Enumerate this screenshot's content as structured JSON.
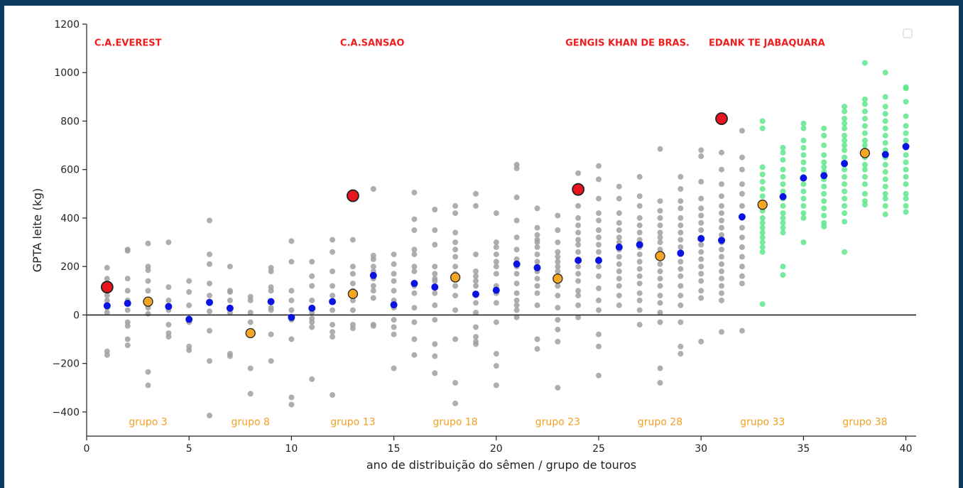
{
  "chart_data": {
    "type": "scatter",
    "xlabel": "ano de distribuição do sêmen / grupo de touros",
    "ylabel": "GPTA leite (kg)",
    "xlim": [
      0,
      40.5
    ],
    "ylim": [
      -500,
      1200
    ],
    "xticks": [
      0,
      5,
      10,
      15,
      20,
      25,
      30,
      35,
      40
    ],
    "yticks": [
      -400,
      -200,
      0,
      200,
      400,
      600,
      800,
      1000,
      1200
    ],
    "ytick_labels": [
      "−400",
      "−200",
      "0",
      "200",
      "400",
      "600",
      "800",
      "1000",
      "1200"
    ],
    "zero_line": true,
    "legend": {
      "placement": "top-right",
      "entries": []
    },
    "colors": {
      "gray_points": "#a0a0a0",
      "green_points": "#5ee68c",
      "group_mean": "#0a14e0",
      "group_marker": "#f5a623",
      "highlight_bull": "#e8141e",
      "bull_label": "#ee1c1c",
      "group_label": "#f0a020"
    },
    "annotations_bulls": [
      {
        "text": "C.A.EVEREST",
        "x": 1,
        "y": 1125
      },
      {
        "text": "C.A.SANSAO",
        "x": 13,
        "y": 1125
      },
      {
        "text": "GENGIS KHAN DE BRAS.",
        "x": 24,
        "y": 1125
      },
      {
        "text": "EDANK TE JABAQUARA",
        "x": 31,
        "y": 1125
      }
    ],
    "annotations_groups": [
      {
        "text": "grupo 3",
        "x": 3,
        "y": -440
      },
      {
        "text": "grupo 8",
        "x": 8,
        "y": -440
      },
      {
        "text": "grupo 13",
        "x": 13,
        "y": -440
      },
      {
        "text": "grupo 18",
        "x": 18,
        "y": -440
      },
      {
        "text": "grupo 23",
        "x": 23,
        "y": -440
      },
      {
        "text": "grupo 28",
        "x": 28,
        "y": -440
      },
      {
        "text": "grupo 33",
        "x": 33,
        "y": -440
      },
      {
        "text": "grupo 38",
        "x": 38,
        "y": -440
      }
    ],
    "highlight_bulls": [
      {
        "x": 1,
        "y": 115
      },
      {
        "x": 13,
        "y": 492
      },
      {
        "x": 24,
        "y": 518
      },
      {
        "x": 31,
        "y": 810
      }
    ],
    "group_markers": [
      {
        "x": 3,
        "y": 55
      },
      {
        "x": 8,
        "y": -75
      },
      {
        "x": 13,
        "y": 87
      },
      {
        "x": 18,
        "y": 155
      },
      {
        "x": 23,
        "y": 150
      },
      {
        "x": 28,
        "y": 243
      },
      {
        "x": 33,
        "y": 455
      },
      {
        "x": 38,
        "y": 668
      }
    ],
    "group_means": [
      {
        "x": 1,
        "y": 38
      },
      {
        "x": 2,
        "y": 48
      },
      {
        "x": 4,
        "y": 35
      },
      {
        "x": 5,
        "y": -18
      },
      {
        "x": 6,
        "y": 52
      },
      {
        "x": 7,
        "y": 28
      },
      {
        "x": 9,
        "y": 55
      },
      {
        "x": 10,
        "y": -10
      },
      {
        "x": 11,
        "y": 28
      },
      {
        "x": 12,
        "y": 55
      },
      {
        "x": 14,
        "y": 163
      },
      {
        "x": 15,
        "y": 42
      },
      {
        "x": 16,
        "y": 130
      },
      {
        "x": 17,
        "y": 115
      },
      {
        "x": 19,
        "y": 86
      },
      {
        "x": 20,
        "y": 102
      },
      {
        "x": 21,
        "y": 210
      },
      {
        "x": 22,
        "y": 195
      },
      {
        "x": 24,
        "y": 225
      },
      {
        "x": 25,
        "y": 225
      },
      {
        "x": 26,
        "y": 280
      },
      {
        "x": 27,
        "y": 290
      },
      {
        "x": 29,
        "y": 255
      },
      {
        "x": 30,
        "y": 315
      },
      {
        "x": 31,
        "y": 308
      },
      {
        "x": 32,
        "y": 405
      },
      {
        "x": 34,
        "y": 488
      },
      {
        "x": 35,
        "y": 565
      },
      {
        "x": 36,
        "y": 575
      },
      {
        "x": 37,
        "y": 625
      },
      {
        "x": 39,
        "y": 662
      },
      {
        "x": 40,
        "y": 695
      }
    ],
    "series_columns": [
      {
        "x": 1,
        "points": [
          195,
          150,
          100,
          80,
          60,
          30,
          10,
          -150,
          -165
        ]
      },
      {
        "x": 2,
        "points": [
          270,
          265,
          150,
          100,
          60,
          20,
          -30,
          -45,
          -100,
          -125
        ]
      },
      {
        "x": 3,
        "points": [
          295,
          200,
          185,
          140,
          100,
          30,
          5,
          -235,
          -290
        ]
      },
      {
        "x": 4,
        "points": [
          300,
          115,
          60,
          20,
          -40,
          -75,
          -90
        ]
      },
      {
        "x": 5,
        "points": [
          140,
          95,
          40,
          -30,
          -130,
          -145
        ]
      },
      {
        "x": 6,
        "points": [
          390,
          250,
          210,
          130,
          80,
          15,
          -65,
          -190,
          -415
        ]
      },
      {
        "x": 7,
        "points": [
          200,
          100,
          95,
          60,
          10,
          -160,
          -170
        ]
      },
      {
        "x": 8,
        "points": [
          75,
          60,
          10,
          -30,
          -220,
          -325
        ]
      },
      {
        "x": 9,
        "points": [
          195,
          180,
          115,
          100,
          30,
          20,
          -80,
          -190
        ]
      },
      {
        "x": 10,
        "points": [
          305,
          220,
          100,
          60,
          20,
          -20,
          -100,
          -340,
          -370
        ]
      },
      {
        "x": 11,
        "points": [
          220,
          160,
          120,
          60,
          10,
          -15,
          -30,
          -50,
          -265
        ]
      },
      {
        "x": 12,
        "points": [
          310,
          260,
          180,
          120,
          80,
          20,
          -40,
          -70,
          -90,
          -330
        ]
      },
      {
        "x": 13,
        "points": [
          310,
          200,
          170,
          130,
          100,
          60,
          20,
          -40,
          -55
        ]
      },
      {
        "x": 14,
        "points": [
          520,
          245,
          230,
          200,
          180,
          150,
          120,
          100,
          70,
          -40,
          -45
        ]
      },
      {
        "x": 15,
        "points": [
          250,
          210,
          170,
          140,
          100,
          60,
          30,
          -20,
          -50,
          -80,
          -220
        ]
      },
      {
        "x": 16,
        "points": [
          505,
          395,
          350,
          270,
          250,
          200,
          180,
          120,
          90,
          30,
          -30,
          -100,
          -165
        ]
      },
      {
        "x": 17,
        "points": [
          435,
          350,
          290,
          200,
          170,
          150,
          140,
          120,
          90,
          40,
          -20,
          -120,
          -170,
          -240
        ]
      },
      {
        "x": 18,
        "points": [
          450,
          420,
          340,
          300,
          270,
          240,
          200,
          170,
          120,
          80,
          20,
          -100,
          -280,
          -365
        ]
      },
      {
        "x": 19,
        "points": [
          500,
          450,
          250,
          180,
          160,
          140,
          120,
          80,
          50,
          10,
          -50,
          -90,
          -110,
          -120
        ]
      },
      {
        "x": 20,
        "points": [
          420,
          300,
          280,
          250,
          220,
          200,
          170,
          120,
          90,
          50,
          -30,
          -160,
          -210,
          -290
        ]
      },
      {
        "x": 21,
        "points": [
          620,
          605,
          485,
          390,
          320,
          270,
          230,
          200,
          170,
          130,
          90,
          60,
          40,
          20,
          -10
        ]
      },
      {
        "x": 22,
        "points": [
          440,
          360,
          330,
          310,
          300,
          280,
          250,
          220,
          200,
          180,
          150,
          120,
          90,
          40,
          -100,
          -140
        ]
      },
      {
        "x": 23,
        "points": [
          410,
          350,
          300,
          260,
          240,
          220,
          200,
          180,
          160,
          120,
          80,
          30,
          -20,
          -60,
          -110,
          -300
        ]
      },
      {
        "x": 24,
        "points": [
          585,
          450,
          400,
          370,
          340,
          310,
          290,
          260,
          230,
          200,
          170,
          140,
          100,
          80,
          40,
          -10
        ]
      },
      {
        "x": 25,
        "points": [
          615,
          560,
          480,
          420,
          390,
          350,
          320,
          290,
          260,
          230,
          200,
          160,
          110,
          60,
          20,
          -80,
          -130,
          -250
        ]
      },
      {
        "x": 26,
        "points": [
          530,
          480,
          420,
          380,
          350,
          320,
          300,
          270,
          240,
          210,
          180,
          150,
          120,
          80,
          40
        ]
      },
      {
        "x": 27,
        "points": [
          570,
          490,
          450,
          400,
          370,
          340,
          310,
          280,
          250,
          220,
          190,
          160,
          130,
          90,
          60,
          20,
          -40
        ]
      },
      {
        "x": 28,
        "points": [
          685,
          470,
          430,
          400,
          370,
          340,
          320,
          300,
          270,
          240,
          210,
          180,
          150,
          120,
          80,
          50,
          10,
          -30,
          -220,
          -280
        ]
      },
      {
        "x": 29,
        "points": [
          570,
          520,
          470,
          440,
          400,
          370,
          340,
          310,
          280,
          250,
          220,
          190,
          160,
          120,
          80,
          40,
          -30,
          -130,
          -160
        ]
      },
      {
        "x": 30,
        "points": [
          680,
          655,
          550,
          480,
          440,
          410,
          380,
          350,
          320,
          290,
          260,
          230,
          200,
          170,
          140,
          100,
          70,
          -110
        ]
      },
      {
        "x": 31,
        "points": [
          670,
          600,
          540,
          490,
          450,
          420,
          390,
          360,
          330,
          300,
          270,
          240,
          210,
          180,
          150,
          120,
          90,
          60,
          -70
        ]
      },
      {
        "x": 32,
        "points": [
          760,
          650,
          600,
          540,
          500,
          450,
          400,
          360,
          320,
          280,
          240,
          200,
          160,
          130,
          -65
        ]
      },
      {
        "x": 33,
        "points": [
          800,
          770,
          610,
          580,
          550,
          520,
          490,
          460,
          430,
          400,
          380,
          360,
          340,
          320,
          300,
          280,
          260,
          45
        ],
        "color": "green"
      },
      {
        "x": 34,
        "points": [
          690,
          670,
          640,
          600,
          570,
          540,
          510,
          480,
          450,
          420,
          400,
          380,
          360,
          340,
          200,
          165
        ],
        "color": "green"
      },
      {
        "x": 35,
        "points": [
          790,
          770,
          720,
          690,
          660,
          630,
          600,
          570,
          540,
          510,
          480,
          450,
          420,
          400,
          300
        ],
        "color": "green"
      },
      {
        "x": 36,
        "points": [
          770,
          740,
          700,
          660,
          630,
          610,
          590,
          560,
          530,
          500,
          470,
          440,
          410,
          380,
          365
        ],
        "color": "green"
      },
      {
        "x": 37,
        "points": [
          860,
          840,
          810,
          790,
          770,
          740,
          720,
          700,
          680,
          650,
          620,
          600,
          570,
          540,
          510,
          480,
          450,
          420,
          385,
          260
        ],
        "color": "green"
      },
      {
        "x": 38,
        "points": [
          1040,
          890,
          870,
          840,
          810,
          780,
          750,
          720,
          700,
          680,
          650,
          620,
          600,
          570,
          540,
          500,
          470,
          455
        ],
        "color": "green"
      },
      {
        "x": 39,
        "points": [
          1000,
          900,
          860,
          830,
          800,
          770,
          740,
          710,
          680,
          650,
          620,
          590,
          560,
          530,
          500,
          480,
          450,
          415
        ],
        "color": "green"
      },
      {
        "x": 40,
        "points": [
          940,
          935,
          880,
          820,
          780,
          750,
          720,
          690,
          660,
          630,
          600,
          570,
          540,
          500,
          480,
          450,
          425
        ],
        "color": "green"
      }
    ]
  }
}
